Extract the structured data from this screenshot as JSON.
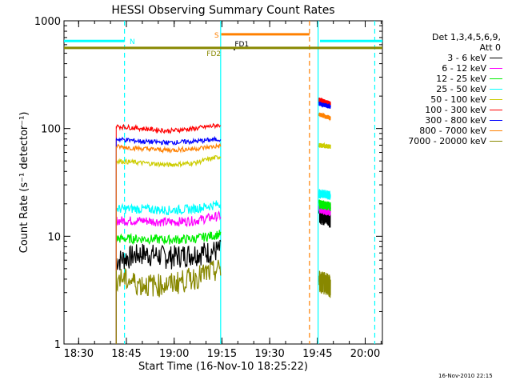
{
  "chart_data": {
    "type": "line",
    "title": "HESSI Observing Summary Count Rates",
    "xlabel": "Start Time (16-Nov-10 18:25:22)",
    "ylabel": "Count Rate (s⁻¹ detector⁻¹)",
    "y_scale": "log",
    "ylim": [
      1,
      1000
    ],
    "x_units": "minutes after 18:25:22",
    "xlim": [
      0,
      100
    ],
    "x_ticks": [
      {
        "label": "18:30",
        "value": 4.6
      },
      {
        "label": "18:45",
        "value": 19.6
      },
      {
        "label": "19:00",
        "value": 34.6
      },
      {
        "label": "19:15",
        "value": 49.6
      },
      {
        "label": "19:30",
        "value": 64.6
      },
      {
        "label": "19:45",
        "value": 79.6
      },
      {
        "label": "20:00",
        "value": 94.6
      }
    ],
    "y_ticks": [
      {
        "label": "1",
        "value": 1
      },
      {
        "label": "10",
        "value": 10
      },
      {
        "label": "100",
        "value": 100
      },
      {
        "label": "1000",
        "value": 1000
      }
    ],
    "legend": {
      "header_line1": "Det 1,3,4,5,6,9,",
      "header_line2": "Att 0",
      "placement": "right"
    },
    "series": [
      {
        "name": "3 - 6 keV",
        "color": "#000000",
        "seg1": [
          6,
          7,
          6.5,
          7,
          7.5
        ],
        "seg2": [
          17,
          16
        ]
      },
      {
        "name": "6 - 12 keV",
        "color": "#ff00ff",
        "seg1": [
          14,
          14,
          13.5,
          14,
          15.5
        ],
        "seg2": [
          18,
          17
        ]
      },
      {
        "name": "12 - 25 keV",
        "color": "#00ee00",
        "seg1": [
          9.5,
          9.5,
          9.3,
          9.5,
          10.5
        ],
        "seg2": [
          20,
          19
        ]
      },
      {
        "name": "25 - 50 keV",
        "color": "#00ffff",
        "seg1": [
          18,
          18,
          17.5,
          18,
          20
        ],
        "seg2": [
          25,
          24
        ]
      },
      {
        "name": "50 - 100 keV",
        "color": "#cccc00",
        "seg1": [
          50,
          48,
          46,
          48,
          55
        ],
        "seg2": [
          70,
          68
        ]
      },
      {
        "name": "100 - 300 keV",
        "color": "#ff0000",
        "seg1": [
          105,
          100,
          95,
          100,
          108
        ],
        "seg2": [
          185,
          170
        ]
      },
      {
        "name": "300 - 800 keV",
        "color": "#0000ff",
        "seg1": [
          80,
          76,
          74,
          76,
          80
        ],
        "seg2": [
          170,
          160
        ]
      },
      {
        "name": "800 - 7000 keV",
        "color": "#ff8000",
        "seg1": [
          68,
          65,
          63,
          65,
          69
        ],
        "seg2": [
          135,
          125
        ]
      },
      {
        "name": "7000 - 20000 keV",
        "color": "#888800",
        "seg1": [
          4.2,
          3.6,
          3.6,
          4.2,
          5.0
        ],
        "seg2": [
          4,
          3.5
        ]
      }
    ],
    "segments_x": {
      "seg1": [
        16.4,
        49.2
      ],
      "seg2": [
        80.1,
        83.7
      ]
    },
    "flags": [
      {
        "label": "N",
        "color": "#00ffff",
        "y": 650,
        "x": [
          0,
          19.0
        ],
        "label_x": 20.6
      },
      {
        "label": "",
        "color": "#00ffff",
        "y": 650,
        "x": [
          80.4,
          100
        ]
      },
      {
        "label": "S",
        "color": "#ff8000",
        "y": 750,
        "x": [
          49.4,
          77.1
        ],
        "label_x": 47.2
      },
      {
        "label": "FD1",
        "color": "#000000",
        "y": 620,
        "x": [
          53.5,
          53.5
        ],
        "label_x": 53.6
      },
      {
        "label": "FD2",
        "color": "#888800",
        "y": 560,
        "x": [
          0,
          100
        ],
        "label_x": 44.8
      }
    ],
    "vlines": [
      {
        "x": 19.0,
        "color": "#00ffff",
        "style": "dashed"
      },
      {
        "x": 49.2,
        "color": "#00ffff",
        "style": "solid"
      },
      {
        "x": 77.1,
        "color": "#ff8000",
        "style": "dashed"
      },
      {
        "x": 79.8,
        "color": "#00ffff",
        "style": "solid"
      },
      {
        "x": 97.6,
        "color": "#00ffff",
        "style": "dashed"
      }
    ],
    "grid": false
  },
  "stamp": "16-Nov-2010 22:15"
}
